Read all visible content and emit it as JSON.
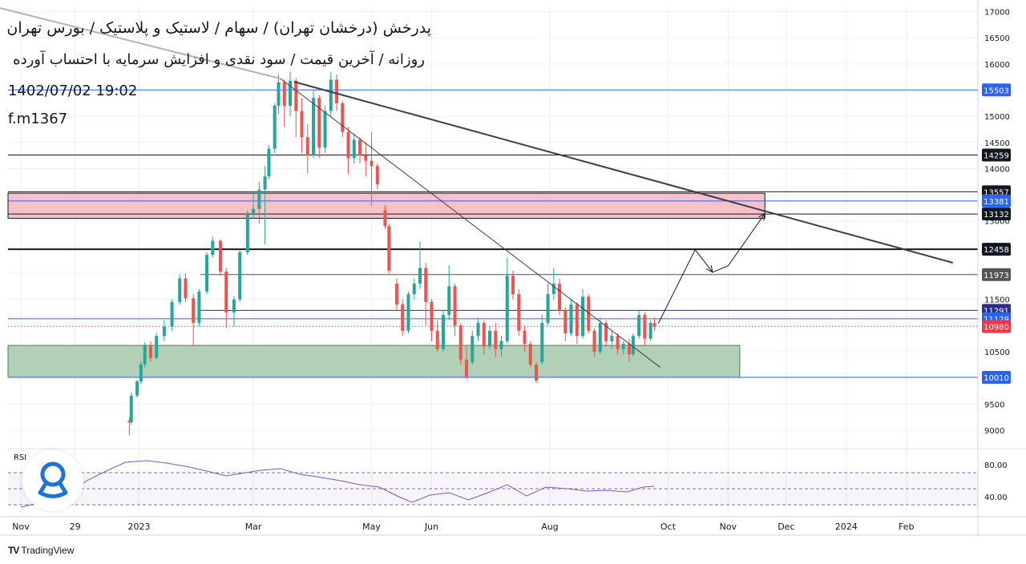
{
  "titles": {
    "line1": "پدرخش (درخشان تهران) / سهام / لاستیک و پلاستیک  / بورس تهران",
    "line2": "روزانه / آخرین قیمت / سود نقدی و افزایش سرمایه با احتساب آورده",
    "line3": "1402/07/02 19:02",
    "line4": "f.m1367"
  },
  "rsi_label": "RSI",
  "footer": {
    "brand": "TradingView",
    "mark": "TV"
  },
  "colors": {
    "up": "#26a69a",
    "down": "#ef5350",
    "rsi": "#7e57c2",
    "resistance_zone": "#f7b6bd",
    "support_zone": "#a5c8a8",
    "last_price": "#f23645",
    "blue_level": "#2962ff",
    "dark_level": "#131722"
  },
  "chart_data": {
    "type": "candlestick",
    "ylim": [
      8800,
      17100
    ],
    "y_ticks": [
      9000,
      9500,
      10000,
      10500,
      11000,
      11500,
      12000,
      12500,
      13000,
      13500,
      14000,
      14500,
      15000,
      15500,
      16000,
      16500,
      17000
    ],
    "x_labels": [
      {
        "label": "Nov",
        "date": "2022-11-01"
      },
      {
        "label": "29",
        "date": "2022-11-29"
      },
      {
        "label": "2023",
        "date": "2023-01-01"
      },
      {
        "label": "Mar",
        "date": "2023-03-01"
      },
      {
        "label": "May",
        "date": "2023-05-01"
      },
      {
        "label": "Jun",
        "date": "2023-06-01"
      },
      {
        "label": "Aug",
        "date": "2023-08-01"
      },
      {
        "label": "Oct",
        "date": "2023-10-01"
      },
      {
        "label": "Nov",
        "date": "2023-11-01"
      },
      {
        "label": "Dec",
        "date": "2023-12-01"
      },
      {
        "label": "2024",
        "date": "2024-01-01"
      },
      {
        "label": "Feb",
        "date": "2024-02-01"
      }
    ],
    "price_levels": [
      {
        "value": 15503,
        "label": "15503",
        "style": "blue"
      },
      {
        "value": 14259,
        "label": "14259",
        "style": "dark"
      },
      {
        "value": 13557,
        "label": "13557",
        "style": "dark"
      },
      {
        "value": 13381,
        "label": "13381",
        "style": "blue"
      },
      {
        "value": 13132,
        "label": "13132",
        "style": "dark"
      },
      {
        "value": 12458,
        "label": "12458",
        "style": "dark"
      },
      {
        "value": 11973,
        "label": "11973",
        "style": "gray"
      },
      {
        "value": 11291,
        "label": "11291",
        "style": "navy"
      },
      {
        "value": 11129,
        "label": "11129",
        "style": "blue"
      },
      {
        "value": 10980,
        "label": "10980",
        "style": "last"
      },
      {
        "value": 10010,
        "label": "10010",
        "style": "blue"
      }
    ],
    "zones": [
      {
        "type": "resistance",
        "from": 13050,
        "to": 13530,
        "start": "2022-11-01",
        "end": "2023-11-20"
      },
      {
        "type": "support",
        "from": 10010,
        "to": 10620,
        "start": "2022-11-01",
        "end": "2023-11-07"
      }
    ],
    "trendlines": [
      {
        "start": {
          "date": "2023-03-15",
          "price": 15720
        },
        "end": {
          "date": "2023-09-27",
          "price": 10200
        }
      },
      {
        "start": {
          "date": "2023-03-22",
          "price": 15660
        },
        "end": {
          "date": "2024-02-25",
          "price": 12200
        }
      }
    ],
    "projection": [
      {
        "date": "2023-09-26",
        "price": 11040
      },
      {
        "date": "2023-10-15",
        "price": 12450
      },
      {
        "date": "2023-10-24",
        "price": 12020
      },
      {
        "date": "2023-11-01",
        "price": 12140
      },
      {
        "date": "2023-11-20",
        "price": 13140
      }
    ],
    "last_price": 10980,
    "candles": [
      {
        "date": "2022-12-27",
        "o": 9180,
        "h": 9250,
        "c": 9150,
        "l": 8900
      },
      {
        "date": "2022-12-28",
        "o": 9150,
        "h": 9720,
        "c": 9660,
        "l": 9100
      },
      {
        "date": "2022-12-31",
        "o": 9660,
        "h": 9960,
        "c": 9930,
        "l": 9620
      },
      {
        "date": "2023-01-02",
        "o": 9930,
        "h": 10320,
        "c": 10260,
        "l": 9880
      },
      {
        "date": "2023-01-04",
        "o": 10260,
        "h": 10680,
        "c": 10630,
        "l": 10200
      },
      {
        "date": "2023-01-07",
        "o": 10630,
        "h": 10700,
        "c": 10380,
        "l": 10300
      },
      {
        "date": "2023-01-10",
        "o": 10380,
        "h": 10860,
        "c": 10800,
        "l": 10350
      },
      {
        "date": "2023-01-14",
        "o": 10800,
        "h": 11100,
        "c": 10980,
        "l": 10700
      },
      {
        "date": "2023-01-18",
        "o": 10980,
        "h": 11500,
        "c": 11450,
        "l": 10900
      },
      {
        "date": "2023-01-22",
        "o": 11450,
        "h": 11980,
        "c": 11900,
        "l": 11400
      },
      {
        "date": "2023-01-25",
        "o": 11900,
        "h": 12000,
        "c": 11520,
        "l": 11450
      },
      {
        "date": "2023-01-29",
        "o": 11520,
        "h": 11600,
        "c": 11050,
        "l": 10620
      },
      {
        "date": "2023-02-01",
        "o": 11050,
        "h": 11700,
        "c": 11650,
        "l": 10980
      },
      {
        "date": "2023-02-05",
        "o": 11650,
        "h": 12400,
        "c": 12350,
        "l": 11600
      },
      {
        "date": "2023-02-08",
        "o": 12350,
        "h": 12700,
        "c": 12620,
        "l": 12300
      },
      {
        "date": "2023-02-12",
        "o": 12620,
        "h": 12650,
        "c": 12030,
        "l": 11950
      },
      {
        "date": "2023-02-15",
        "o": 12030,
        "h": 12100,
        "c": 11250,
        "l": 10950
      },
      {
        "date": "2023-02-19",
        "o": 11250,
        "h": 11560,
        "c": 11500,
        "l": 10980
      },
      {
        "date": "2023-02-22",
        "o": 11500,
        "h": 12450,
        "c": 12400,
        "l": 11450
      },
      {
        "date": "2023-02-26",
        "o": 12400,
        "h": 13200,
        "c": 13150,
        "l": 12350
      },
      {
        "date": "2023-03-01",
        "o": 13150,
        "h": 13560,
        "c": 13230,
        "l": 13050
      },
      {
        "date": "2023-03-04",
        "o": 13230,
        "h": 13750,
        "c": 13600,
        "l": 12950
      },
      {
        "date": "2023-03-07",
        "o": 13600,
        "h": 14050,
        "c": 13850,
        "l": 12550
      },
      {
        "date": "2023-03-09",
        "o": 13850,
        "h": 14450,
        "c": 14380,
        "l": 13800
      },
      {
        "date": "2023-03-12",
        "o": 14380,
        "h": 15250,
        "c": 15200,
        "l": 14300
      },
      {
        "date": "2023-03-14",
        "o": 15200,
        "h": 15800,
        "c": 15650,
        "l": 15050
      },
      {
        "date": "2023-03-17",
        "o": 15650,
        "h": 15700,
        "c": 15200,
        "l": 14800
      },
      {
        "date": "2023-03-20",
        "o": 15200,
        "h": 15850,
        "c": 15680,
        "l": 15000
      },
      {
        "date": "2023-03-23",
        "o": 15680,
        "h": 15720,
        "c": 15100,
        "l": 14600
      },
      {
        "date": "2023-03-26",
        "o": 15100,
        "h": 15350,
        "c": 14600,
        "l": 14300
      },
      {
        "date": "2023-03-29",
        "o": 14600,
        "h": 14850,
        "c": 14250,
        "l": 13900
      },
      {
        "date": "2023-04-01",
        "o": 14250,
        "h": 15500,
        "c": 15350,
        "l": 14200
      },
      {
        "date": "2023-04-04",
        "o": 15350,
        "h": 15400,
        "c": 14400,
        "l": 14200
      },
      {
        "date": "2023-04-07",
        "o": 14400,
        "h": 15200,
        "c": 15100,
        "l": 14300
      },
      {
        "date": "2023-04-10",
        "o": 15100,
        "h": 15850,
        "c": 15700,
        "l": 15000
      },
      {
        "date": "2023-04-13",
        "o": 15700,
        "h": 15800,
        "c": 15250,
        "l": 15100
      },
      {
        "date": "2023-04-16",
        "o": 15250,
        "h": 15300,
        "c": 14700,
        "l": 14600
      },
      {
        "date": "2023-04-19",
        "o": 14700,
        "h": 14800,
        "c": 14200,
        "l": 13900
      },
      {
        "date": "2023-04-22",
        "o": 14200,
        "h": 14650,
        "c": 14550,
        "l": 14100
      },
      {
        "date": "2023-04-25",
        "o": 14550,
        "h": 14600,
        "c": 14250,
        "l": 14100
      },
      {
        "date": "2023-04-28",
        "o": 14250,
        "h": 14500,
        "c": 14150,
        "l": 13850
      },
      {
        "date": "2023-05-01",
        "o": 14150,
        "h": 14700,
        "c": 14050,
        "l": 13300
      },
      {
        "date": "2023-05-04",
        "o": 14050,
        "h": 14100,
        "c": 13700,
        "l": 13600
      },
      {
        "date": "2023-05-08",
        "o": 13200,
        "h": 13300,
        "c": 12900,
        "l": 12850
      },
      {
        "date": "2023-05-10",
        "o": 12900,
        "h": 12950,
        "c": 12050,
        "l": 12000
      },
      {
        "date": "2023-05-14",
        "o": 11800,
        "h": 11900,
        "c": 11400,
        "l": 11300
      },
      {
        "date": "2023-05-17",
        "o": 11400,
        "h": 11500,
        "c": 10900,
        "l": 10800
      },
      {
        "date": "2023-05-20",
        "o": 10900,
        "h": 11650,
        "c": 11600,
        "l": 10850
      },
      {
        "date": "2023-05-23",
        "o": 11600,
        "h": 11900,
        "c": 11800,
        "l": 11500
      },
      {
        "date": "2023-05-26",
        "o": 11800,
        "h": 12600,
        "c": 12100,
        "l": 11700
      },
      {
        "date": "2023-05-29",
        "o": 12100,
        "h": 12200,
        "c": 11450,
        "l": 11000
      },
      {
        "date": "2023-06-01",
        "o": 11450,
        "h": 11500,
        "c": 10900,
        "l": 10700
      },
      {
        "date": "2023-06-04",
        "o": 10900,
        "h": 11100,
        "c": 10550,
        "l": 10500
      },
      {
        "date": "2023-06-07",
        "o": 10550,
        "h": 11300,
        "c": 11200,
        "l": 10500
      },
      {
        "date": "2023-06-10",
        "o": 11200,
        "h": 12150,
        "c": 11750,
        "l": 11100
      },
      {
        "date": "2023-06-13",
        "o": 11750,
        "h": 11800,
        "c": 11000,
        "l": 10800
      },
      {
        "date": "2023-06-16",
        "o": 11000,
        "h": 11050,
        "c": 10350,
        "l": 10250
      },
      {
        "date": "2023-06-19",
        "o": 10350,
        "h": 10600,
        "c": 10000,
        "l": 9980
      },
      {
        "date": "2023-06-22",
        "o": 10300,
        "h": 10900,
        "c": 10800,
        "l": 10250
      },
      {
        "date": "2023-06-25",
        "o": 10800,
        "h": 11150,
        "c": 11050,
        "l": 10700
      },
      {
        "date": "2023-06-28",
        "o": 11050,
        "h": 11100,
        "c": 10600,
        "l": 10450
      },
      {
        "date": "2023-07-01",
        "o": 10600,
        "h": 11000,
        "c": 10900,
        "l": 10550
      },
      {
        "date": "2023-07-04",
        "o": 10900,
        "h": 11050,
        "c": 10550,
        "l": 10400
      },
      {
        "date": "2023-07-07",
        "o": 10550,
        "h": 10800,
        "c": 10700,
        "l": 10400
      },
      {
        "date": "2023-07-10",
        "o": 10700,
        "h": 12300,
        "c": 11950,
        "l": 10650
      },
      {
        "date": "2023-07-13",
        "o": 11950,
        "h": 12050,
        "c": 11600,
        "l": 11500
      },
      {
        "date": "2023-07-16",
        "o": 11600,
        "h": 11700,
        "c": 10900,
        "l": 10800
      },
      {
        "date": "2023-07-19",
        "o": 10900,
        "h": 11000,
        "c": 10650,
        "l": 10500
      },
      {
        "date": "2023-07-22",
        "o": 10650,
        "h": 10700,
        "c": 10250,
        "l": 10200
      },
      {
        "date": "2023-07-25",
        "o": 10250,
        "h": 10300,
        "c": 9950,
        "l": 9900
      },
      {
        "date": "2023-07-28",
        "o": 10300,
        "h": 11200,
        "c": 11050,
        "l": 10250
      },
      {
        "date": "2023-07-31",
        "o": 11050,
        "h": 11800,
        "c": 11600,
        "l": 11000
      },
      {
        "date": "2023-08-03",
        "o": 11600,
        "h": 12100,
        "c": 11800,
        "l": 11500
      },
      {
        "date": "2023-08-06",
        "o": 11800,
        "h": 11900,
        "c": 11300,
        "l": 11200
      },
      {
        "date": "2023-08-09",
        "o": 11300,
        "h": 11350,
        "c": 10850,
        "l": 10700
      },
      {
        "date": "2023-08-12",
        "o": 10850,
        "h": 11500,
        "c": 11400,
        "l": 10800
      },
      {
        "date": "2023-08-15",
        "o": 11400,
        "h": 11450,
        "c": 10800,
        "l": 10650
      },
      {
        "date": "2023-08-18",
        "o": 10800,
        "h": 11700,
        "c": 11550,
        "l": 10750
      },
      {
        "date": "2023-08-21",
        "o": 11550,
        "h": 11600,
        "c": 10900,
        "l": 10850
      },
      {
        "date": "2023-08-24",
        "o": 10900,
        "h": 10950,
        "c": 10500,
        "l": 10400
      },
      {
        "date": "2023-08-27",
        "o": 10500,
        "h": 11150,
        "c": 11050,
        "l": 10450
      },
      {
        "date": "2023-08-30",
        "o": 11050,
        "h": 11100,
        "c": 10700,
        "l": 10600
      },
      {
        "date": "2023-09-02",
        "o": 10700,
        "h": 10900,
        "c": 10800,
        "l": 10550
      },
      {
        "date": "2023-09-05",
        "o": 10800,
        "h": 10850,
        "c": 10550,
        "l": 10450
      },
      {
        "date": "2023-09-08",
        "o": 10550,
        "h": 10700,
        "c": 10650,
        "l": 10450
      },
      {
        "date": "2023-09-11",
        "o": 10650,
        "h": 10750,
        "c": 10450,
        "l": 10300
      },
      {
        "date": "2023-09-13",
        "o": 10450,
        "h": 10850,
        "c": 10800,
        "l": 10400
      },
      {
        "date": "2023-09-16",
        "o": 10800,
        "h": 11300,
        "c": 11200,
        "l": 10750
      },
      {
        "date": "2023-09-19",
        "o": 11200,
        "h": 11250,
        "c": 10750,
        "l": 10600
      },
      {
        "date": "2023-09-22",
        "o": 10750,
        "h": 11100,
        "c": 11050,
        "l": 10700
      },
      {
        "date": "2023-09-24",
        "o": 11050,
        "h": 11150,
        "c": 10980,
        "l": 10900
      }
    ],
    "rsi": {
      "ylim": [
        20,
        90
      ],
      "levels": [
        70,
        50,
        30
      ],
      "tick_labels": [
        80,
        40
      ],
      "points": [
        {
          "date": "2022-11-01",
          "v": 27
        },
        {
          "date": "2022-11-10",
          "v": 32
        },
        {
          "date": "2022-11-18",
          "v": 38
        },
        {
          "date": "2022-11-26",
          "v": 45
        },
        {
          "date": "2022-12-05",
          "v": 60
        },
        {
          "date": "2022-12-15",
          "v": 72
        },
        {
          "date": "2022-12-25",
          "v": 83
        },
        {
          "date": "2023-01-05",
          "v": 85
        },
        {
          "date": "2023-01-15",
          "v": 82
        },
        {
          "date": "2023-01-25",
          "v": 78
        },
        {
          "date": "2023-02-05",
          "v": 72
        },
        {
          "date": "2023-02-15",
          "v": 66
        },
        {
          "date": "2023-02-25",
          "v": 70
        },
        {
          "date": "2023-03-05",
          "v": 73
        },
        {
          "date": "2023-03-15",
          "v": 75
        },
        {
          "date": "2023-03-25",
          "v": 68
        },
        {
          "date": "2023-04-05",
          "v": 64
        },
        {
          "date": "2023-04-15",
          "v": 60
        },
        {
          "date": "2023-04-25",
          "v": 55
        },
        {
          "date": "2023-05-05",
          "v": 52
        },
        {
          "date": "2023-05-15",
          "v": 40
        },
        {
          "date": "2023-05-22",
          "v": 33
        },
        {
          "date": "2023-05-31",
          "v": 42
        },
        {
          "date": "2023-06-10",
          "v": 45
        },
        {
          "date": "2023-06-20",
          "v": 36
        },
        {
          "date": "2023-06-30",
          "v": 45
        },
        {
          "date": "2023-07-10",
          "v": 55
        },
        {
          "date": "2023-07-20",
          "v": 41
        },
        {
          "date": "2023-07-30",
          "v": 52
        },
        {
          "date": "2023-08-10",
          "v": 50
        },
        {
          "date": "2023-08-20",
          "v": 47
        },
        {
          "date": "2023-08-30",
          "v": 48
        },
        {
          "date": "2023-09-10",
          "v": 46
        },
        {
          "date": "2023-09-18",
          "v": 52
        },
        {
          "date": "2023-09-24",
          "v": 53
        }
      ]
    }
  }
}
